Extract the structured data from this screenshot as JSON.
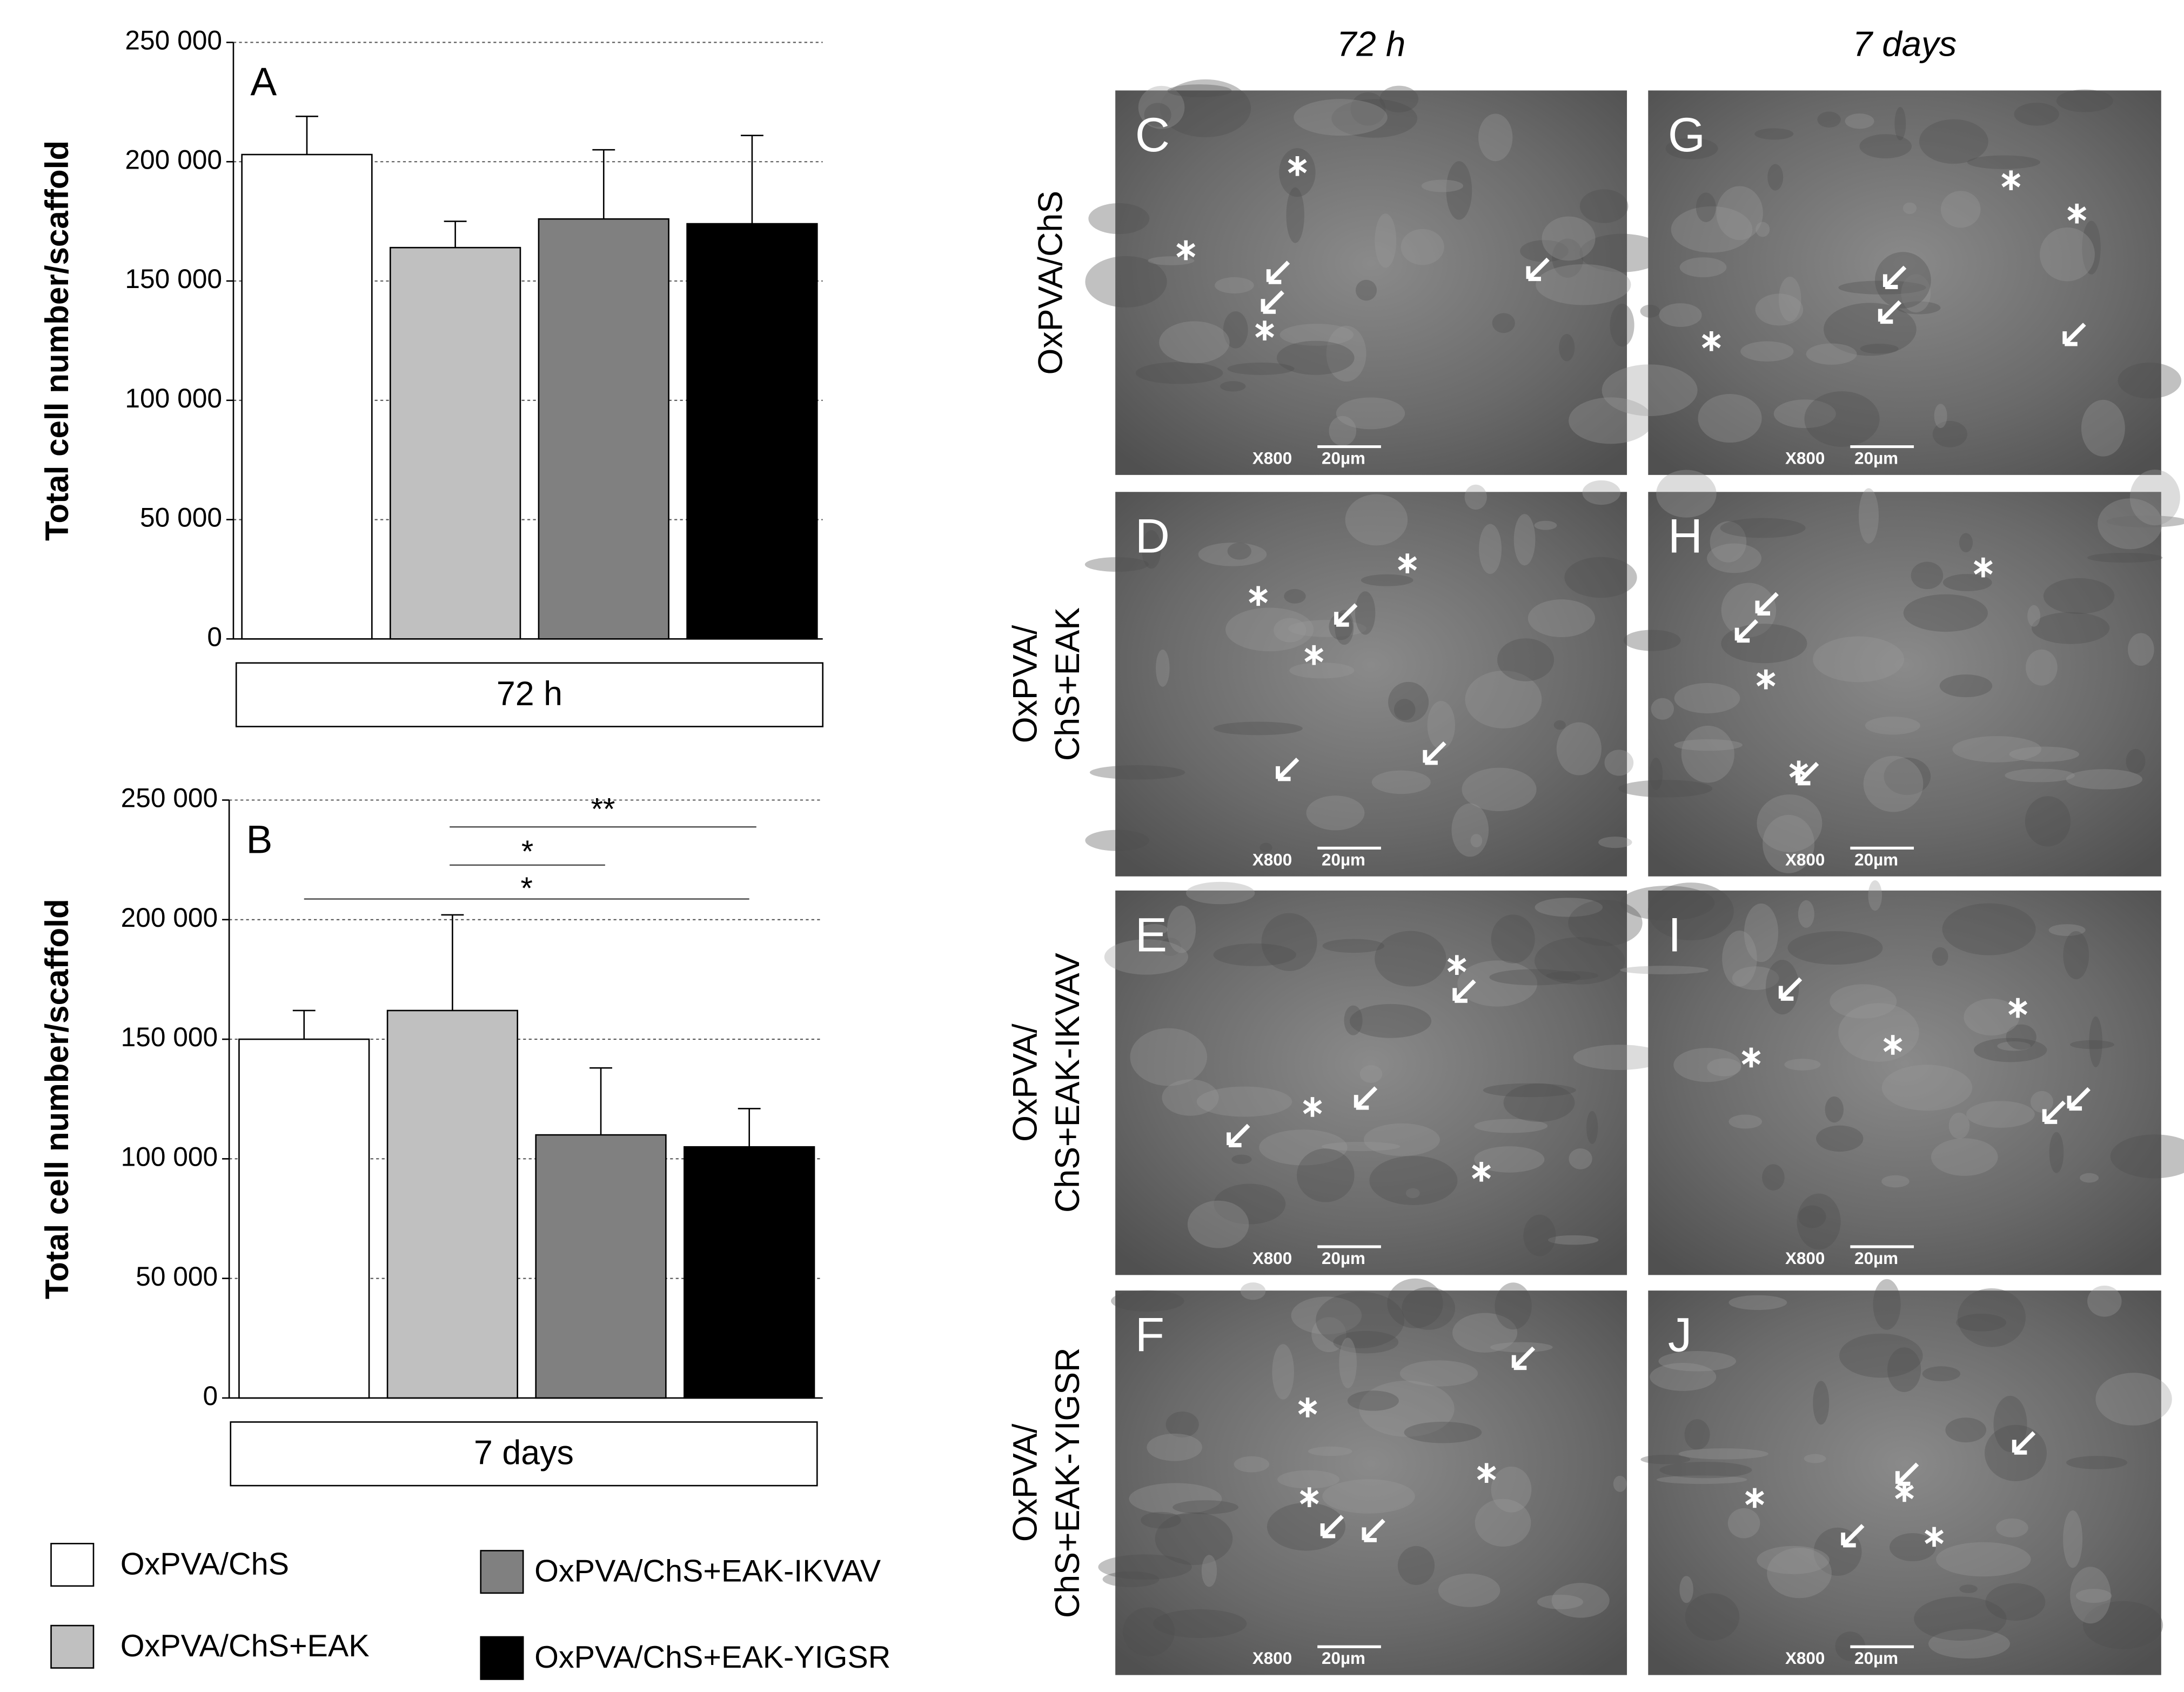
{
  "chart_data": [
    {
      "type": "bar",
      "panel": "A",
      "ylabel": "Total cell number/scaffold",
      "xlabel": "72 h",
      "values": [
        203000,
        164000,
        176000,
        174000
      ],
      "errors": [
        16000,
        11000,
        29000,
        37000
      ],
      "ylim": [
        0,
        250000
      ],
      "yticks": [
        0,
        {
          "value": 50000,
          "label": "50 000"
        },
        {
          "value": 100000,
          "label": "100 000"
        },
        {
          "value": 150000,
          "label": "150 000"
        },
        {
          "value": 200000,
          "label": "200 000"
        },
        {
          "value": 250000,
          "label": "250 000"
        }
      ],
      "grid": true
    },
    {
      "type": "bar",
      "panel": "B",
      "ylabel": "Total cell number/scaffold",
      "xlabel": "7 days",
      "values": [
        150000,
        162000,
        110000,
        105000
      ],
      "errors": [
        12000,
        40000,
        28000,
        16000
      ],
      "ylim": [
        0,
        250000
      ],
      "yticks": [
        0,
        {
          "value": 50000,
          "label": "50 000"
        },
        {
          "value": 100000,
          "label": "100 000"
        },
        {
          "value": 150000,
          "label": "150 000"
        },
        {
          "value": 200000,
          "label": "200 000"
        },
        {
          "value": 250000,
          "label": "250 000"
        }
      ],
      "grid": true,
      "annotations": [
        "**",
        "*",
        "*"
      ]
    }
  ],
  "legend": {
    "items": [
      {
        "name": "OxPVA/ChS",
        "color": "#ffffff"
      },
      {
        "name": "OxPVA/ChS+EAK",
        "color": "#c0c0c0"
      },
      {
        "name": "OxPVA/ChS+EAK-IKVAV",
        "color": "#808080"
      },
      {
        "name": "OxPVA/ChS+EAK-YIGSR",
        "color": "#000000"
      }
    ]
  },
  "images": {
    "columns": [
      "72 h",
      "7 days"
    ],
    "rows": [
      [
        "OxPVA/ChS"
      ],
      [
        "OxPVA/",
        "ChS+EAK"
      ],
      [
        "OxPVA/",
        "ChS+EAK-IKVAV"
      ],
      [
        "OxPVA/",
        "ChS+EAK-YIGSR"
      ]
    ],
    "panels": [
      [
        {
          "letter": "C",
          "magnification": "X800",
          "scale": "20µm"
        },
        {
          "letter": "G",
          "magnification": "X800",
          "scale": "20µm"
        }
      ],
      [
        {
          "letter": "D",
          "magnification": "X800",
          "scale": "20µm"
        },
        {
          "letter": "H",
          "magnification": "X800",
          "scale": "20µm"
        }
      ],
      [
        {
          "letter": "E",
          "magnification": "X800",
          "scale": "20µm"
        },
        {
          "letter": "I",
          "magnification": "X800",
          "scale": "20µm"
        }
      ],
      [
        {
          "letter": "F",
          "magnification": "X800",
          "scale": "20µm"
        },
        {
          "letter": "J",
          "magnification": "X800",
          "scale": "20µm"
        }
      ]
    ]
  }
}
